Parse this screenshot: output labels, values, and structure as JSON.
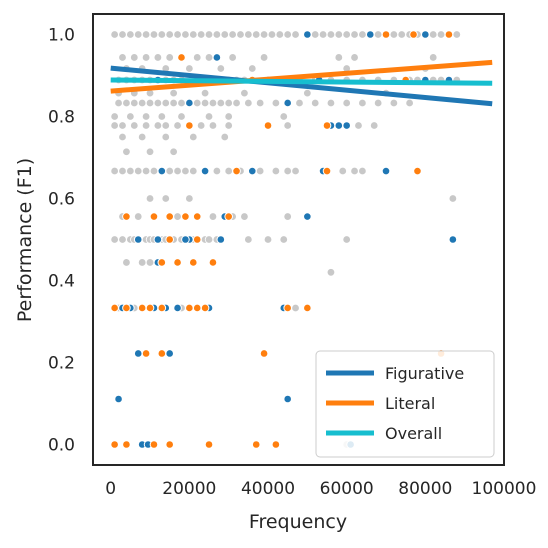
{
  "chart_data": {
    "type": "scatter",
    "title": "",
    "xlabel": "Frequency",
    "ylabel": "Performance (F1)",
    "xlim": [
      -4500,
      100000
    ],
    "ylim": [
      -0.05,
      1.05
    ],
    "xticks": [
      0,
      20000,
      40000,
      60000,
      80000,
      100000
    ],
    "xtick_labels": [
      "0",
      "20000",
      "40000",
      "60000",
      "80000",
      "100000"
    ],
    "yticks": [
      0.0,
      0.2,
      0.4,
      0.6,
      0.8,
      1.0
    ],
    "ytick_labels": [
      "0.0",
      "0.2",
      "0.4",
      "0.6",
      "0.8",
      "1.0"
    ],
    "grid": false,
    "legend_position": "lower-right",
    "colors": {
      "figurative": "#1f77b4",
      "literal": "#ff7f0e",
      "overall": "#17becf",
      "background_points": "#c8c8c8"
    },
    "series": [
      {
        "name": "Figurative",
        "trend": {
          "x": [
            0,
            97000
          ],
          "y": [
            0.918,
            0.831
          ]
        },
        "points": [
          [
            8000,
            0.0
          ],
          [
            9500,
            0.0
          ],
          [
            2000,
            0.111
          ],
          [
            45000,
            0.111
          ],
          [
            7000,
            0.222
          ],
          [
            15000,
            0.222
          ],
          [
            3000,
            0.333
          ],
          [
            5000,
            0.333
          ],
          [
            11000,
            0.333
          ],
          [
            14000,
            0.333
          ],
          [
            17000,
            0.333
          ],
          [
            25000,
            0.333
          ],
          [
            44000,
            0.333
          ],
          [
            7000,
            0.5
          ],
          [
            12000,
            0.5
          ],
          [
            20000,
            0.5
          ],
          [
            28000,
            0.5
          ],
          [
            87000,
            0.5
          ],
          [
            29000,
            0.556
          ],
          [
            50000,
            0.556
          ],
          [
            24000,
            0.667
          ],
          [
            36000,
            0.667
          ],
          [
            54000,
            0.667
          ],
          [
            70000,
            0.667
          ],
          [
            56000,
            0.778
          ],
          [
            58000,
            0.778
          ],
          [
            60000,
            0.778
          ],
          [
            12000,
            0.889
          ],
          [
            53000,
            0.889
          ],
          [
            80000,
            0.889
          ],
          [
            86000,
            0.889
          ],
          [
            40000,
            0.889
          ],
          [
            27000,
            0.944
          ],
          [
            50000,
            1.0
          ],
          [
            66000,
            1.0
          ],
          [
            80000,
            1.0
          ],
          [
            20000,
            0.833
          ],
          [
            45000,
            0.833
          ],
          [
            13000,
            0.667
          ],
          [
            7000,
            0.5
          ],
          [
            12000,
            0.444
          ],
          [
            19000,
            0.5
          ],
          [
            61000,
            0.0
          ]
        ]
      },
      {
        "name": "Literal",
        "trend": {
          "x": [
            0,
            97000
          ],
          "y": [
            0.862,
            0.932
          ]
        },
        "points": [
          [
            1000,
            0.0
          ],
          [
            4000,
            0.0
          ],
          [
            11000,
            0.0
          ],
          [
            15000,
            0.0
          ],
          [
            25000,
            0.0
          ],
          [
            37000,
            0.0
          ],
          [
            42000,
            0.0
          ],
          [
            9000,
            0.222
          ],
          [
            13000,
            0.222
          ],
          [
            39000,
            0.222
          ],
          [
            84000,
            0.222
          ],
          [
            1000,
            0.333
          ],
          [
            4000,
            0.333
          ],
          [
            8000,
            0.333
          ],
          [
            10000,
            0.333
          ],
          [
            13000,
            0.333
          ],
          [
            20000,
            0.333
          ],
          [
            22000,
            0.333
          ],
          [
            24000,
            0.333
          ],
          [
            45000,
            0.333
          ],
          [
            50000,
            0.333
          ],
          [
            13000,
            0.444
          ],
          [
            17000,
            0.444
          ],
          [
            21000,
            0.444
          ],
          [
            26000,
            0.444
          ],
          [
            15000,
            0.5
          ],
          [
            22000,
            0.5
          ],
          [
            4000,
            0.556
          ],
          [
            11000,
            0.556
          ],
          [
            15000,
            0.556
          ],
          [
            19000,
            0.556
          ],
          [
            22000,
            0.556
          ],
          [
            30000,
            0.556
          ],
          [
            32000,
            0.667
          ],
          [
            55000,
            0.667
          ],
          [
            78000,
            0.667
          ],
          [
            55000,
            0.778
          ],
          [
            20000,
            0.778
          ],
          [
            40000,
            0.778
          ],
          [
            75000,
            0.889
          ],
          [
            70000,
            1.0
          ],
          [
            77000,
            1.0
          ],
          [
            86000,
            1.0
          ],
          [
            42000,
            0.889
          ],
          [
            36000,
            0.889
          ],
          [
            18000,
            0.944
          ]
        ]
      },
      {
        "name": "Overall",
        "trend": {
          "x": [
            0,
            97000
          ],
          "y": [
            0.889,
            0.881
          ]
        },
        "points": []
      }
    ],
    "background_points": [
      [
        1000,
        1.0
      ],
      [
        3000,
        1.0
      ],
      [
        5000,
        1.0
      ],
      [
        7000,
        1.0
      ],
      [
        9000,
        1.0
      ],
      [
        11000,
        1.0
      ],
      [
        13000,
        1.0
      ],
      [
        15000,
        1.0
      ],
      [
        17000,
        1.0
      ],
      [
        19000,
        1.0
      ],
      [
        21000,
        1.0
      ],
      [
        23000,
        1.0
      ],
      [
        25000,
        1.0
      ],
      [
        27000,
        1.0
      ],
      [
        29000,
        1.0
      ],
      [
        31000,
        1.0
      ],
      [
        33000,
        1.0
      ],
      [
        35000,
        1.0
      ],
      [
        37000,
        1.0
      ],
      [
        39000,
        1.0
      ],
      [
        41000,
        1.0
      ],
      [
        43000,
        1.0
      ],
      [
        45000,
        1.0
      ],
      [
        47000,
        1.0
      ],
      [
        52000,
        1.0
      ],
      [
        54000,
        1.0
      ],
      [
        56000,
        1.0
      ],
      [
        58000,
        1.0
      ],
      [
        60000,
        1.0
      ],
      [
        62000,
        1.0
      ],
      [
        64000,
        1.0
      ],
      [
        68000,
        1.0
      ],
      [
        72000,
        1.0
      ],
      [
        74000,
        1.0
      ],
      [
        76000,
        1.0
      ],
      [
        78000,
        1.0
      ],
      [
        82000,
        1.0
      ],
      [
        84000,
        1.0
      ],
      [
        88000,
        1.0
      ],
      [
        3000,
        0.944
      ],
      [
        6000,
        0.944
      ],
      [
        9000,
        0.944
      ],
      [
        12000,
        0.944
      ],
      [
        15000,
        0.944
      ],
      [
        22000,
        0.944
      ],
      [
        25000,
        0.944
      ],
      [
        31000,
        0.944
      ],
      [
        39000,
        0.944
      ],
      [
        58000,
        0.944
      ],
      [
        62000,
        0.944
      ],
      [
        82000,
        0.944
      ],
      [
        4000,
        0.917
      ],
      [
        8000,
        0.917
      ],
      [
        14000,
        0.917
      ],
      [
        20000,
        0.917
      ],
      [
        28000,
        0.917
      ],
      [
        36000,
        0.917
      ],
      [
        60000,
        0.917
      ],
      [
        80000,
        0.917
      ],
      [
        2000,
        0.889
      ],
      [
        4000,
        0.889
      ],
      [
        6000,
        0.889
      ],
      [
        8000,
        0.889
      ],
      [
        10000,
        0.889
      ],
      [
        14000,
        0.889
      ],
      [
        16000,
        0.889
      ],
      [
        18000,
        0.889
      ],
      [
        22000,
        0.889
      ],
      [
        24000,
        0.889
      ],
      [
        26000,
        0.889
      ],
      [
        28000,
        0.889
      ],
      [
        30000,
        0.889
      ],
      [
        32000,
        0.889
      ],
      [
        34000,
        0.889
      ],
      [
        44000,
        0.889
      ],
      [
        48000,
        0.889
      ],
      [
        52000,
        0.889
      ],
      [
        56000,
        0.889
      ],
      [
        60000,
        0.889
      ],
      [
        64000,
        0.889
      ],
      [
        68000,
        0.889
      ],
      [
        72000,
        0.889
      ],
      [
        76000,
        0.889
      ],
      [
        78000,
        0.889
      ],
      [
        82000,
        0.889
      ],
      [
        84000,
        0.889
      ],
      [
        88000,
        0.889
      ],
      [
        2000,
        0.857
      ],
      [
        6000,
        0.857
      ],
      [
        10000,
        0.857
      ],
      [
        16000,
        0.857
      ],
      [
        24000,
        0.857
      ],
      [
        34000,
        0.857
      ],
      [
        50000,
        0.857
      ],
      [
        70000,
        0.857
      ],
      [
        2000,
        0.833
      ],
      [
        4000,
        0.833
      ],
      [
        6000,
        0.833
      ],
      [
        8000,
        0.833
      ],
      [
        10000,
        0.833
      ],
      [
        12000,
        0.833
      ],
      [
        14000,
        0.833
      ],
      [
        16000,
        0.833
      ],
      [
        18000,
        0.833
      ],
      [
        22000,
        0.833
      ],
      [
        24000,
        0.833
      ],
      [
        26000,
        0.833
      ],
      [
        28000,
        0.833
      ],
      [
        30000,
        0.833
      ],
      [
        32000,
        0.833
      ],
      [
        35000,
        0.833
      ],
      [
        38000,
        0.833
      ],
      [
        42000,
        0.833
      ],
      [
        48000,
        0.833
      ],
      [
        52000,
        0.833
      ],
      [
        56000,
        0.833
      ],
      [
        60000,
        0.833
      ],
      [
        64000,
        0.833
      ],
      [
        68000,
        0.833
      ],
      [
        72000,
        0.833
      ],
      [
        76000,
        0.833
      ],
      [
        1000,
        0.8
      ],
      [
        5000,
        0.8
      ],
      [
        9000,
        0.8
      ],
      [
        13000,
        0.8
      ],
      [
        18000,
        0.8
      ],
      [
        25000,
        0.8
      ],
      [
        30000,
        0.8
      ],
      [
        44000,
        0.8
      ],
      [
        1000,
        0.778
      ],
      [
        3000,
        0.778
      ],
      [
        6000,
        0.778
      ],
      [
        9000,
        0.778
      ],
      [
        12000,
        0.778
      ],
      [
        14000,
        0.778
      ],
      [
        17000,
        0.778
      ],
      [
        23000,
        0.778
      ],
      [
        26000,
        0.778
      ],
      [
        30000,
        0.778
      ],
      [
        45000,
        0.778
      ],
      [
        63000,
        0.778
      ],
      [
        67000,
        0.778
      ],
      [
        3000,
        0.75
      ],
      [
        8000,
        0.75
      ],
      [
        14000,
        0.75
      ],
      [
        21000,
        0.75
      ],
      [
        29000,
        0.75
      ],
      [
        4000,
        0.714
      ],
      [
        10000,
        0.714
      ],
      [
        16000,
        0.714
      ],
      [
        1000,
        0.667
      ],
      [
        3000,
        0.667
      ],
      [
        5000,
        0.667
      ],
      [
        7000,
        0.667
      ],
      [
        9000,
        0.667
      ],
      [
        11000,
        0.667
      ],
      [
        15000,
        0.667
      ],
      [
        17000,
        0.667
      ],
      [
        19000,
        0.667
      ],
      [
        21000,
        0.667
      ],
      [
        27000,
        0.667
      ],
      [
        30000,
        0.667
      ],
      [
        33000,
        0.667
      ],
      [
        38000,
        0.667
      ],
      [
        42000,
        0.667
      ],
      [
        45000,
        0.667
      ],
      [
        47000,
        0.667
      ],
      [
        59000,
        0.667
      ],
      [
        62000,
        0.667
      ],
      [
        64000,
        0.667
      ],
      [
        10000,
        0.6
      ],
      [
        14000,
        0.6
      ],
      [
        20000,
        0.6
      ],
      [
        87000,
        0.6
      ],
      [
        3000,
        0.556
      ],
      [
        7000,
        0.556
      ],
      [
        17000,
        0.556
      ],
      [
        26000,
        0.556
      ],
      [
        31000,
        0.556
      ],
      [
        34000,
        0.556
      ],
      [
        45000,
        0.556
      ],
      [
        1000,
        0.5
      ],
      [
        3000,
        0.5
      ],
      [
        5000,
        0.5
      ],
      [
        6000,
        0.5
      ],
      [
        9000,
        0.5
      ],
      [
        10000,
        0.5
      ],
      [
        11000,
        0.5
      ],
      [
        13000,
        0.5
      ],
      [
        14000,
        0.5
      ],
      [
        16000,
        0.5
      ],
      [
        18000,
        0.5
      ],
      [
        21000,
        0.5
      ],
      [
        24000,
        0.5
      ],
      [
        25000,
        0.5
      ],
      [
        27000,
        0.5
      ],
      [
        35000,
        0.5
      ],
      [
        40000,
        0.5
      ],
      [
        44000,
        0.5
      ],
      [
        60000,
        0.5
      ],
      [
        4000,
        0.444
      ],
      [
        8000,
        0.444
      ],
      [
        10000,
        0.444
      ],
      [
        56000,
        0.42
      ],
      [
        2000,
        0.333
      ],
      [
        6000,
        0.333
      ],
      [
        18000,
        0.333
      ],
      [
        24000,
        0.333
      ],
      [
        47000,
        0.333
      ],
      [
        60000,
        0.0
      ]
    ]
  }
}
